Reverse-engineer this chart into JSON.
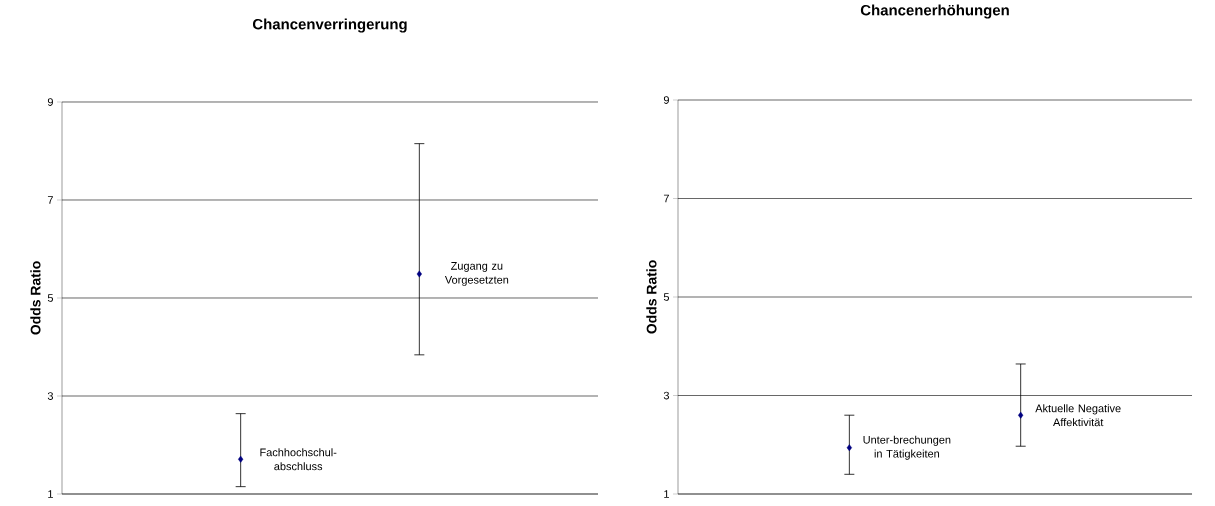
{
  "chart_data": [
    {
      "type": "scatter",
      "title": "Chancenverringerung",
      "ylabel": "Odds Ratio",
      "categories": [
        null,
        null
      ],
      "values": [
        1.71,
        5.49
      ],
      "errors": [
        [
          1.15,
          2.64
        ],
        [
          3.84,
          8.15
        ]
      ],
      "color": "#000080",
      "marker": "diamond",
      "ylim": [
        1,
        9
      ],
      "yticks": [
        1,
        3,
        5,
        7,
        9
      ],
      "grid": "y",
      "annotations": [
        "Fachhochschul-abschluss",
        "Zugang zu Vorgesetzten"
      ]
    },
    {
      "type": "scatter",
      "title": "Chancenerhöhungen",
      "ylabel": "Odds Ratio",
      "categories": [
        null,
        null
      ],
      "values": [
        1.94,
        2.6
      ],
      "errors": [
        [
          1.4,
          2.6
        ],
        [
          1.97,
          3.64
        ]
      ],
      "color": "#000080",
      "marker": "diamond",
      "ylim": [
        1,
        9
      ],
      "yticks": [
        1,
        3,
        5,
        7,
        9
      ],
      "grid": "y",
      "annotations": [
        "Unter-brechungen in Tätigkeiten",
        "Aktuelle Negative Affektivität"
      ]
    }
  ]
}
